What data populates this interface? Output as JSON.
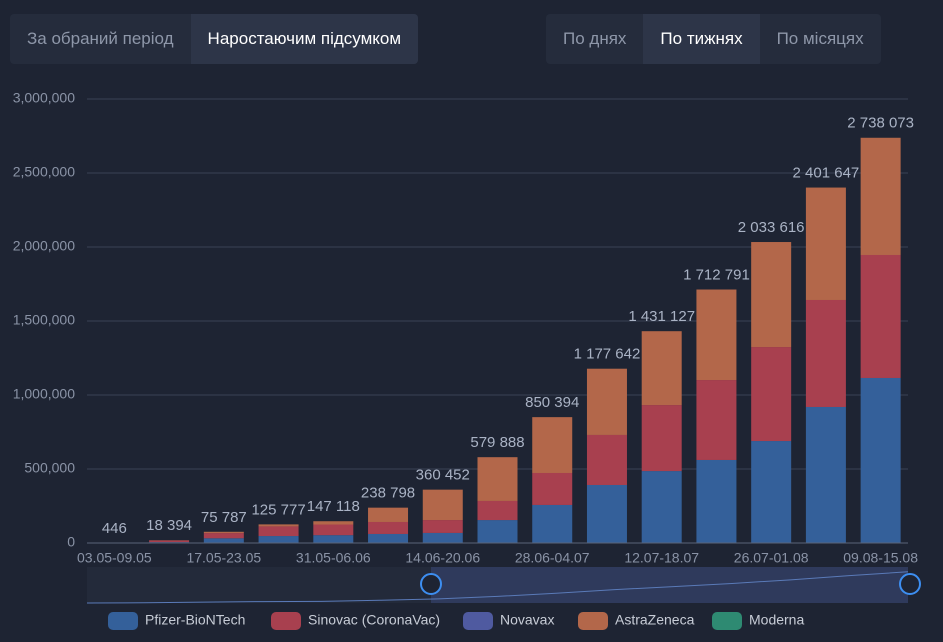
{
  "controls": {
    "period_tabs": [
      "За обраний період",
      "Наростаючим підсумком"
    ],
    "active_period": 1,
    "step_tabs": [
      "По днях",
      "По тижнях",
      "По місяцях"
    ],
    "active_step": 1
  },
  "chart_data": {
    "type": "stacked-bar",
    "categories": [
      "03.05-09.05",
      null,
      "17.05-23.05",
      null,
      "31.05-06.06",
      null,
      "14.06-20.06",
      null,
      "28.06-04.07",
      null,
      "12.07-18.07",
      null,
      "26.07-01.08",
      null,
      "09.08-15.08"
    ],
    "series": [
      {
        "name": "Pfizer-BioNTech",
        "color": "#34609a",
        "values": [
          446,
          6000,
          32000,
          47000,
          53000,
          61000,
          68000,
          155000,
          257000,
          392000,
          486000,
          561000,
          689000,
          919000,
          1115000
        ]
      },
      {
        "name": "Sinovac (CoronaVac)",
        "color": "#a8404f",
        "values": [
          0,
          11000,
          35000,
          65000,
          72000,
          81000,
          87000,
          129000,
          216000,
          338000,
          446000,
          540000,
          635000,
          723000,
          831000
        ]
      },
      {
        "name": "Novavax",
        "color": "#4f5aa0",
        "values": [
          0,
          0,
          0,
          0,
          0,
          0,
          0,
          0,
          0,
          0,
          0,
          0,
          0,
          0,
          0
        ]
      },
      {
        "name": "AstraZeneca",
        "color": "#b3674a",
        "values": [
          0,
          1394,
          8787,
          13777,
          22118,
          96798,
          205452,
          295888,
          377394,
          447642,
          499127,
          611791,
          709616,
          759647,
          792073
        ]
      },
      {
        "name": "Moderna",
        "color": "#2e8a72",
        "values": [
          0,
          0,
          0,
          0,
          0,
          0,
          0,
          0,
          0,
          0,
          0,
          0,
          0,
          0,
          0
        ]
      }
    ],
    "totals": [
      446,
      18394,
      75787,
      125777,
      147118,
      238798,
      360452,
      579888,
      850394,
      1177642,
      1431127,
      1712791,
      2033616,
      2401647,
      2738073
    ],
    "total_labels": [
      "446",
      "18 394",
      "75 787",
      "125 777",
      "147 118",
      "238 798",
      "360 452",
      "579 888",
      "850 394",
      "1 177 642",
      "1 431 127",
      "1 712 791",
      "2 033 616",
      "2 401 647",
      "2 738 073"
    ],
    "ylim": [
      0,
      3000000
    ],
    "yticks": [
      0,
      {
        "value": 500000,
        "label": "500,000"
      },
      {
        "value": 1000000,
        "label": "1,000,000"
      },
      {
        "value": 1500000,
        "label": "1,500,000"
      },
      {
        "value": 2000000,
        "label": "2,000,000"
      },
      {
        "value": 2500000,
        "label": "2,500,000"
      },
      {
        "value": 3000000,
        "label": "3,000,000"
      }
    ],
    "grid": true
  }
}
